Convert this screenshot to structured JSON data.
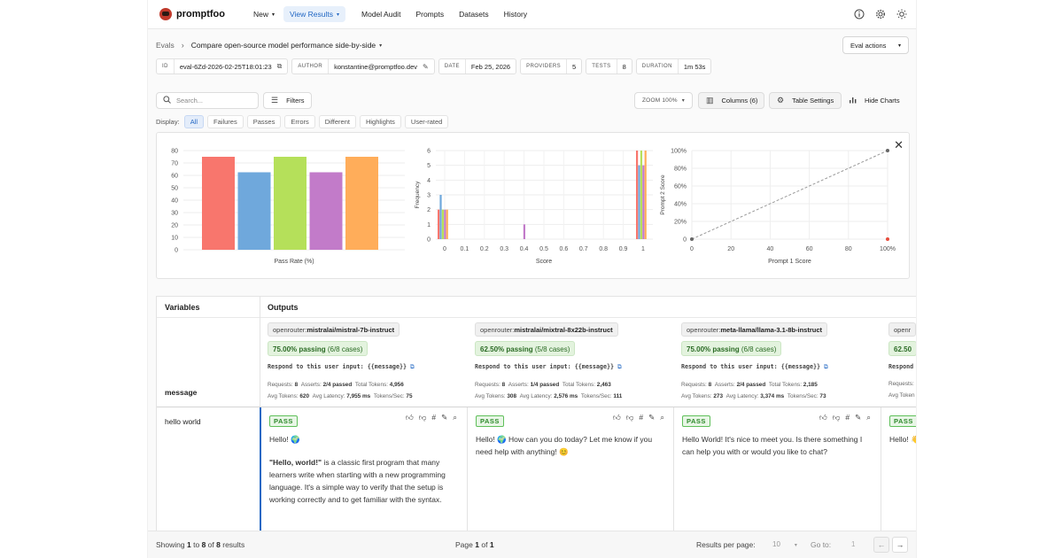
{
  "nav": {
    "brand": "promptfoo",
    "links": [
      {
        "label": "New",
        "dropdown": true
      },
      {
        "label": "View Results",
        "dropdown": true,
        "active": true
      },
      {
        "label": "Model Audit"
      },
      {
        "label": "Prompts"
      },
      {
        "label": "Datasets"
      },
      {
        "label": "History"
      }
    ],
    "icons": [
      "info-icon",
      "gear-icon",
      "sun-icon"
    ]
  },
  "header": {
    "breadcrumb_root": "Evals",
    "breadcrumb_current": "Compare open-source model performance side-by-side",
    "eval_actions_label": "Eval actions"
  },
  "meta": [
    {
      "key": "ID",
      "value": "eval-6Zd-2026-02-25T18:01:23",
      "icon": "copy-icon"
    },
    {
      "key": "AUTHOR",
      "value": "konstantine@promptfoo.dev",
      "icon": "pencil-icon"
    },
    {
      "key": "DATE",
      "value": "Feb 25, 2026"
    },
    {
      "key": "PROVIDERS",
      "value": "5"
    },
    {
      "key": "TESTS",
      "value": "8"
    },
    {
      "key": "DURATION",
      "value": "1m 53s"
    }
  ],
  "toolbar": {
    "search_placeholder": "Search...",
    "filters_label": "Filters",
    "zoom_label": "ZOOM 100%",
    "columns_label": "Columns (6)",
    "table_settings_label": "Table Settings",
    "hide_charts_label": "Hide Charts"
  },
  "display": {
    "label": "Display:",
    "options": [
      "All",
      "Failures",
      "Passes",
      "Errors",
      "Different",
      "Highlights",
      "User-rated"
    ],
    "active": "All"
  },
  "chart_data": [
    {
      "type": "bar",
      "xlabel": "Pass Rate (%)",
      "ylim": [
        0,
        80
      ],
      "yticks": [
        "0",
        "10",
        "20",
        "30",
        "40",
        "50",
        "60",
        "70",
        "80"
      ],
      "values": [
        75,
        62.5,
        75,
        62.5,
        75
      ],
      "colors": [
        "#f8766d",
        "#6fa8dc",
        "#b5e05a",
        "#c27bc9",
        "#ffad5a"
      ]
    },
    {
      "type": "bar",
      "xlabel": "Score",
      "ylabel": "Frequency",
      "ylim": [
        0,
        6
      ],
      "yticks": [
        "0",
        "1",
        "2",
        "3",
        "4",
        "5",
        "6"
      ],
      "xticks": [
        "0",
        "0.1",
        "0.2",
        "0.3",
        "0.4",
        "0.5",
        "0.6",
        "0.7",
        "0.8",
        "0.9",
        "1"
      ],
      "groups": [
        {
          "x": 0,
          "values": [
            2,
            3,
            2,
            2,
            2
          ]
        },
        {
          "x": 0.4,
          "values": [
            0,
            0,
            0,
            1,
            0
          ]
        },
        {
          "x": 1,
          "values": [
            6,
            5,
            6,
            5,
            6
          ]
        }
      ],
      "colors": [
        "#f8766d",
        "#6fa8dc",
        "#b5e05a",
        "#c27bc9",
        "#ffad5a"
      ]
    },
    {
      "type": "scatter",
      "xlabel": "Prompt 1 Score",
      "ylabel": "Prompt 2 Score",
      "xticks": [
        "0",
        "20",
        "40",
        "60",
        "80",
        "100%"
      ],
      "yticks": [
        "0",
        "20%",
        "40%",
        "60%",
        "80%",
        "100%"
      ],
      "points": [
        {
          "x": 0,
          "y": 0,
          "color": "#666666"
        },
        {
          "x": 100,
          "y": 100,
          "color": "#666666"
        },
        {
          "x": 100,
          "y": 0,
          "color": "#e74c3c"
        }
      ]
    }
  ],
  "table": {
    "variables_header": "Variables",
    "outputs_header": "Outputs",
    "var_name": "message",
    "rows": [
      {
        "message": "hello world"
      }
    ],
    "columns": [
      {
        "provider_prefix": "openrouter:",
        "provider_model": "mistralai/mistral-7b-instruct",
        "pass_pct": "75.00% passing",
        "pass_cases": "(6/8 cases)",
        "prompt": "Respond to this user input: {{message}}",
        "stats_line1": [
          [
            "Requests:",
            "8"
          ],
          [
            "Asserts:",
            "2/4 passed"
          ],
          [
            "Total Tokens:",
            "4,956"
          ]
        ],
        "stats_line2": [
          [
            "Avg Tokens:",
            "620"
          ],
          [
            "Avg Latency:",
            "7,955 ms"
          ],
          [
            "Tokens/Sec:",
            "75"
          ]
        ],
        "result": "PASS",
        "output": [
          "Hello! 🌍",
          "\"Hello, world!\" is a classic first program that many learners write when starting with a new programming language. It's a simple way to verify that the setup is working correctly and to get familiar with the syntax."
        ]
      },
      {
        "provider_prefix": "openrouter:",
        "provider_model": "mistralai/mixtral-8x22b-instruct",
        "pass_pct": "62.50% passing",
        "pass_cases": "(5/8 cases)",
        "prompt": "Respond to this user input: {{message}}",
        "stats_line1": [
          [
            "Requests:",
            "8"
          ],
          [
            "Asserts:",
            "1/4 passed"
          ],
          [
            "Total Tokens:",
            "2,463"
          ]
        ],
        "stats_line2": [
          [
            "Avg Tokens:",
            "308"
          ],
          [
            "Avg Latency:",
            "2,576 ms"
          ],
          [
            "Tokens/Sec:",
            "111"
          ]
        ],
        "result": "PASS",
        "output": [
          "Hello! 🌍 How can you do today? Let me know if you need help with anything! 😊"
        ]
      },
      {
        "provider_prefix": "openrouter:",
        "provider_model": "meta-llama/llama-3.1-8b-instruct",
        "pass_pct": "75.00% passing",
        "pass_cases": "(6/8 cases)",
        "prompt": "Respond to this user input: {{message}}",
        "stats_line1": [
          [
            "Requests:",
            "8"
          ],
          [
            "Asserts:",
            "2/4 passed"
          ],
          [
            "Total Tokens:",
            "2,185"
          ]
        ],
        "stats_line2": [
          [
            "Avg Tokens:",
            "273"
          ],
          [
            "Avg Latency:",
            "3,374 ms"
          ],
          [
            "Tokens/Sec:",
            "73"
          ]
        ],
        "result": "PASS",
        "output": [
          "Hello World! It's nice to meet you. Is there something I can help you with or would you like to chat?"
        ]
      },
      {
        "provider_prefix": "openr",
        "provider_model": "",
        "pass_pct": "62.50",
        "pass_cases": "",
        "prompt": "Respond",
        "stats_line1": [
          [
            "Requests:",
            ""
          ]
        ],
        "stats_line2": [
          [
            "Avg Token",
            ""
          ]
        ],
        "result": "PASS",
        "output": [
          "Hello! 👋"
        ]
      }
    ]
  },
  "footer": {
    "showing_prefix": "Showing",
    "showing_from": "1",
    "showing_to_word": "to",
    "showing_to": "8",
    "showing_of_word": "of",
    "showing_total": "8",
    "showing_suffix": "results",
    "page_word": "Page",
    "page": "1",
    "page_of_word": "of",
    "page_total": "1",
    "rpp_label": "Results per page:",
    "rpp_value": "10",
    "goto_label": "Go to:",
    "goto_value": "1"
  }
}
